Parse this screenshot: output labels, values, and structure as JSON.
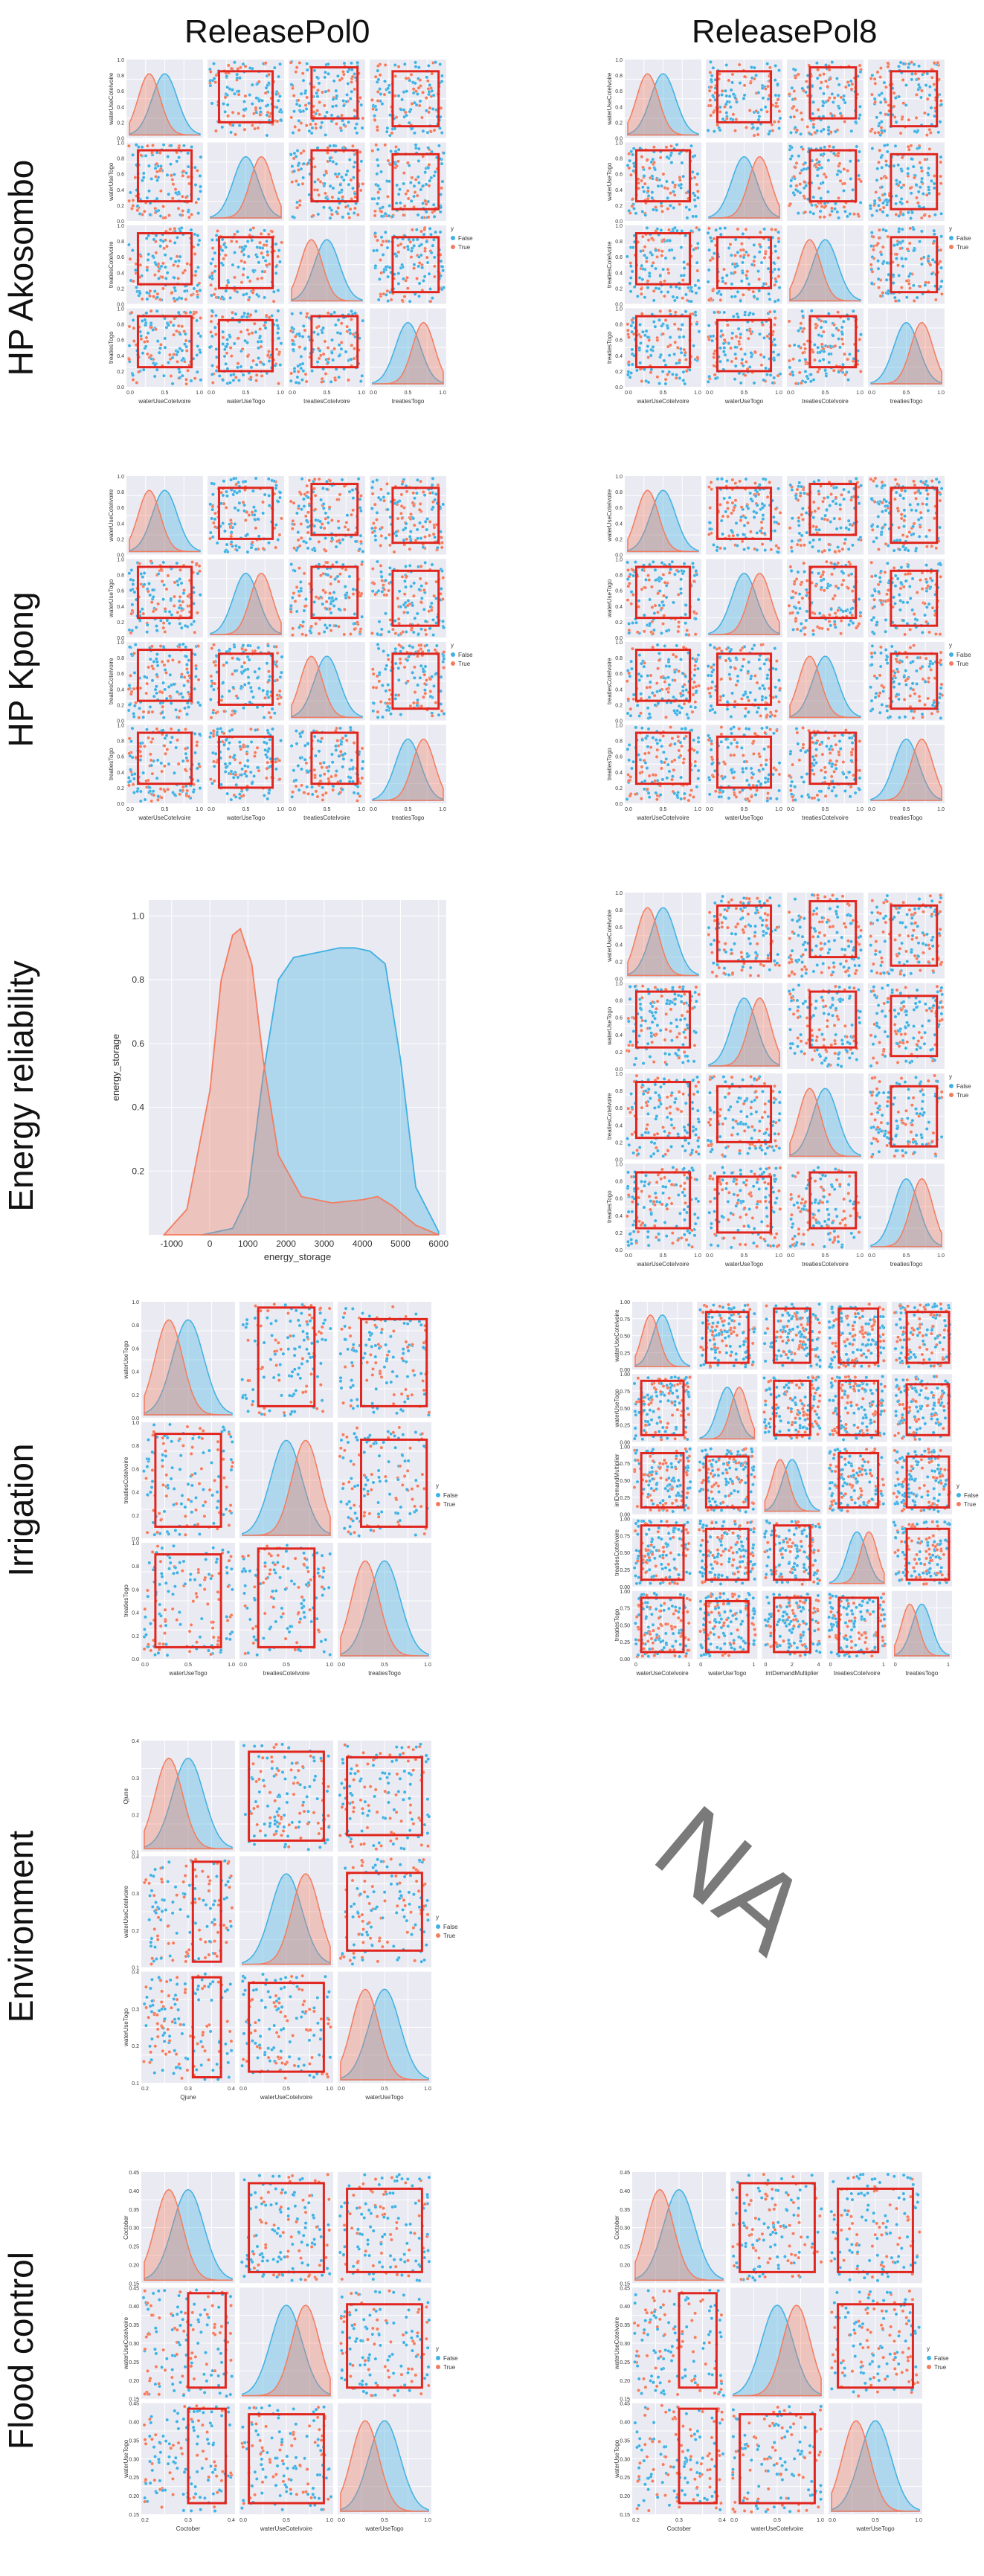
{
  "columns": [
    "ReleasePol0",
    "ReleasePol8"
  ],
  "rows": [
    "HP Akosombo",
    "HP Kpong",
    "Energy reliability",
    "Irrigation",
    "Environment",
    "Flood control"
  ],
  "na_label": "NA",
  "legend": {
    "title": "y",
    "false_label": "False",
    "true_label": "True"
  },
  "colors": {
    "false": "#3fb1e3",
    "true": "#f47b5e",
    "box": "#e0261e",
    "panel_bg": "#eaeaf2"
  },
  "chart_data": [
    {
      "type": "scatter",
      "name": "pairplot",
      "column": "ReleasePol0",
      "row": "HP Akosombo",
      "variables": [
        "waterUseCoteIvoire",
        "waterUseTogo",
        "treatiesCoteIvoire",
        "treatiesTogo"
      ],
      "ticks": [
        [
          "0.0",
          "0.5",
          "1.0"
        ],
        [
          "0.0",
          "0.5",
          "1.0"
        ],
        [
          "0.0",
          "0.5",
          "1.0"
        ],
        [
          "0.0",
          "0.5",
          "1.0"
        ]
      ],
      "y_ticks": [
        "0.0",
        "0.2",
        "0.4",
        "0.6",
        "0.8",
        "1.0"
      ],
      "boxes": [
        [
          0.15,
          0.85,
          0.25,
          0.9
        ],
        [
          0.15,
          0.85,
          0.2,
          0.85
        ],
        [
          0.3,
          0.9,
          0.25,
          0.9
        ],
        [
          0.3,
          0.9,
          0.15,
          0.85
        ]
      ],
      "grid": true,
      "legend_position": "right"
    },
    {
      "type": "scatter",
      "name": "pairplot",
      "column": "ReleasePol8",
      "row": "HP Akosombo",
      "variables": [
        "waterUseCoteIvoire",
        "waterUseTogo",
        "treatiesCoteIvoire",
        "treatiesTogo"
      ],
      "ticks": [
        [
          "0.0",
          "0.5",
          "1.0"
        ],
        [
          "0.0",
          "0.5",
          "1.0"
        ],
        [
          "0.0",
          "0.5",
          "1.0"
        ],
        [
          "0.0",
          "0.5",
          "1.0"
        ]
      ],
      "y_ticks": [
        "0.0",
        "0.2",
        "0.4",
        "0.6",
        "0.8",
        "1.0"
      ],
      "boxes": [
        [
          0.15,
          0.85,
          0.25,
          0.9
        ],
        [
          0.15,
          0.85,
          0.2,
          0.85
        ],
        [
          0.3,
          0.9,
          0.25,
          0.9
        ],
        [
          0.3,
          0.9,
          0.15,
          0.85
        ]
      ],
      "grid": true,
      "legend_position": "right"
    },
    {
      "type": "scatter",
      "name": "pairplot",
      "column": "ReleasePol0",
      "row": "HP Kpong",
      "variables": [
        "waterUseCoteIvoire",
        "waterUseTogo",
        "treatiesCoteIvoire",
        "treatiesTogo"
      ],
      "ticks": [
        [
          "0.0",
          "0.5",
          "1.0"
        ],
        [
          "0.0",
          "0.5",
          "1.0"
        ],
        [
          "0.0",
          "0.5",
          "1.0"
        ],
        [
          "0.0",
          "0.5",
          "1.0"
        ]
      ],
      "y_ticks": [
        "0.0",
        "0.2",
        "0.4",
        "0.6",
        "0.8",
        "1.0"
      ],
      "boxes": [
        [
          0.15,
          0.85,
          0.25,
          0.9
        ],
        [
          0.15,
          0.85,
          0.2,
          0.85
        ],
        [
          0.3,
          0.9,
          0.25,
          0.9
        ],
        [
          0.3,
          0.9,
          0.15,
          0.85
        ]
      ],
      "grid": true,
      "legend_position": "right"
    },
    {
      "type": "scatter",
      "name": "pairplot",
      "column": "ReleasePol8",
      "row": "HP Kpong",
      "variables": [
        "waterUseCoteIvoire",
        "waterUseTogo",
        "treatiesCoteIvoire",
        "treatiesTogo"
      ],
      "ticks": [
        [
          "0.0",
          "0.5",
          "1.0"
        ],
        [
          "0.0",
          "0.5",
          "1.0"
        ],
        [
          "0.0",
          "0.5",
          "1.0"
        ],
        [
          "0.0",
          "0.5",
          "1.0"
        ]
      ],
      "y_ticks": [
        "0.0",
        "0.2",
        "0.4",
        "0.6",
        "0.8",
        "1.0"
      ],
      "boxes": [
        [
          0.15,
          0.85,
          0.25,
          0.9
        ],
        [
          0.15,
          0.85,
          0.2,
          0.85
        ],
        [
          0.3,
          0.9,
          0.25,
          0.9
        ],
        [
          0.3,
          0.9,
          0.15,
          0.85
        ]
      ],
      "grid": true,
      "legend_position": "right"
    },
    {
      "type": "area",
      "name": "kde",
      "column": "ReleasePol0",
      "row": "Energy reliability",
      "xlabel": "energy_storage",
      "ylabel": "energy_storage",
      "x_ticks": [
        -1000,
        0,
        1000,
        2000,
        3000,
        4000,
        5000,
        6000
      ],
      "y_ticks": [
        0.2,
        0.4,
        0.6,
        0.8,
        1.0
      ],
      "xlim": [
        -1600,
        6200
      ],
      "ylim": [
        0,
        1.05
      ],
      "series": [
        {
          "name": "False",
          "x": [
            -200,
            600,
            1000,
            1400,
            1800,
            2200,
            2600,
            3000,
            3400,
            3800,
            4200,
            4600,
            5000,
            5400,
            6000
          ],
          "y": [
            0.0,
            0.02,
            0.12,
            0.5,
            0.8,
            0.87,
            0.88,
            0.89,
            0.9,
            0.9,
            0.89,
            0.85,
            0.55,
            0.15,
            0.01
          ]
        },
        {
          "name": "True",
          "x": [
            -1200,
            -600,
            0,
            300,
            600,
            800,
            1100,
            1400,
            1800,
            2400,
            3200,
            4000,
            4400,
            4800,
            5400,
            6000
          ],
          "y": [
            0.0,
            0.08,
            0.45,
            0.8,
            0.94,
            0.96,
            0.85,
            0.55,
            0.25,
            0.12,
            0.1,
            0.11,
            0.12,
            0.09,
            0.03,
            0.0
          ]
        }
      ],
      "grid": true
    },
    {
      "type": "scatter",
      "name": "pairplot",
      "column": "ReleasePol8",
      "row": "Energy reliability",
      "variables": [
        "waterUseCoteIvoire",
        "waterUseTogo",
        "treatiesCoteIvoire",
        "treatiesTogo"
      ],
      "ticks": [
        [
          "0.0",
          "0.5",
          "1.0"
        ],
        [
          "0.0",
          "0.5",
          "1.0"
        ],
        [
          "0.0",
          "0.5",
          "1.0"
        ],
        [
          "0.0",
          "0.5",
          "1.0"
        ]
      ],
      "y_ticks": [
        "0.0",
        "0.2",
        "0.4",
        "0.6",
        "0.8",
        "1.0"
      ],
      "boxes": [
        [
          0.15,
          0.85,
          0.25,
          0.9
        ],
        [
          0.15,
          0.85,
          0.2,
          0.85
        ],
        [
          0.3,
          0.9,
          0.25,
          0.9
        ],
        [
          0.3,
          0.9,
          0.15,
          0.85
        ]
      ],
      "grid": true,
      "legend_position": "right"
    },
    {
      "type": "scatter",
      "name": "pairplot",
      "column": "ReleasePol0",
      "row": "Irrigation",
      "variables": [
        "waterUseTogo",
        "treatiesCoteIvoire",
        "treatiesTogo"
      ],
      "ticks": [
        [
          "0.0",
          "0.5",
          "1.0"
        ],
        [
          "0.0",
          "0.5",
          "1.0"
        ],
        [
          "0.0",
          "0.5",
          "1.0"
        ]
      ],
      "y_ticks": [
        "0.0",
        "0.2",
        "0.4",
        "0.6",
        "0.8",
        "1.0"
      ],
      "boxes": [
        [
          0.15,
          0.85,
          0.1,
          0.9
        ],
        [
          0.2,
          0.8,
          0.1,
          0.95
        ],
        [
          0.25,
          0.95,
          0.1,
          0.85
        ]
      ],
      "grid": true,
      "legend_position": "right"
    },
    {
      "type": "scatter",
      "name": "pairplot",
      "column": "ReleasePol8",
      "row": "Irrigation",
      "variables": [
        "waterUseCoteIvoire",
        "waterUseTogo",
        "irriDemandMultiplier",
        "treatiesCoteIvoire",
        "treatiesTogo"
      ],
      "ticks": [
        [
          "0",
          "1"
        ],
        [
          "0",
          "1"
        ],
        [
          "0",
          "2",
          "4"
        ],
        [
          "0",
          "1"
        ],
        [
          "0",
          "1"
        ]
      ],
      "y_ticks": [
        "0.00",
        "0.25",
        "0.50",
        "0.75",
        "1.00"
      ],
      "boxes": [
        [
          0.15,
          0.85,
          0.1,
          0.9
        ],
        [
          0.15,
          0.85,
          0.1,
          0.85
        ],
        [
          0.2,
          0.8,
          0.1,
          0.9
        ],
        [
          0.2,
          0.85,
          0.1,
          0.9
        ],
        [
          0.25,
          0.95,
          0.1,
          0.85
        ]
      ],
      "grid": true,
      "legend_position": "right"
    },
    {
      "type": "scatter",
      "name": "pairplot",
      "column": "ReleasePol0",
      "row": "Environment",
      "variables": [
        "Qjune",
        "waterUseCoteIvoire",
        "waterUseTogo"
      ],
      "ticks": [
        [
          "0.2",
          "0.3",
          "0.4"
        ],
        [
          "0.0",
          "0.5",
          "1.0"
        ],
        [
          "0.0",
          "0.5",
          "1.0"
        ]
      ],
      "y_ticks": [
        "0.1",
        "0.2",
        "0.3",
        "0.4"
      ],
      "boxes": [
        [
          0.55,
          0.85,
          0.05,
          0.95
        ],
        [
          0.1,
          0.9,
          0.1,
          0.9
        ],
        [
          0.1,
          0.9,
          0.15,
          0.85
        ]
      ],
      "grid": true,
      "legend_position": "right"
    },
    {
      "type": "scatter",
      "name": "pairplot",
      "column": "ReleasePol0",
      "row": "Flood control",
      "variables": [
        "Coctober",
        "waterUseCoteIvoire",
        "waterUseTogo"
      ],
      "ticks": [
        [
          "0.2",
          "0.3",
          "0.4"
        ],
        [
          "0.0",
          "0.5",
          "1.0"
        ],
        [
          "0.0",
          "0.5",
          "1.0"
        ]
      ],
      "y_ticks": [
        "0.15",
        "0.20",
        "0.25",
        "0.30",
        "0.35",
        "0.40",
        "0.45"
      ],
      "boxes": [
        [
          0.5,
          0.9,
          0.1,
          0.95
        ],
        [
          0.1,
          0.9,
          0.1,
          0.9
        ],
        [
          0.1,
          0.9,
          0.1,
          0.85
        ]
      ],
      "grid": true,
      "legend_position": "right"
    },
    {
      "type": "scatter",
      "name": "pairplot",
      "column": "ReleasePol8",
      "row": "Flood control",
      "variables": [
        "Coctober",
        "waterUseCoteIvoire",
        "waterUseTogo"
      ],
      "ticks": [
        [
          "0.2",
          "0.3",
          "0.4"
        ],
        [
          "0.0",
          "0.5",
          "1.0"
        ],
        [
          "0.0",
          "0.5",
          "1.0"
        ]
      ],
      "y_ticks": [
        "0.15",
        "0.20",
        "0.25",
        "0.30",
        "0.35",
        "0.40",
        "0.45"
      ],
      "boxes": [
        [
          0.5,
          0.9,
          0.1,
          0.95
        ],
        [
          0.1,
          0.9,
          0.1,
          0.9
        ],
        [
          0.1,
          0.9,
          0.1,
          0.85
        ]
      ],
      "grid": true,
      "legend_position": "right"
    }
  ]
}
